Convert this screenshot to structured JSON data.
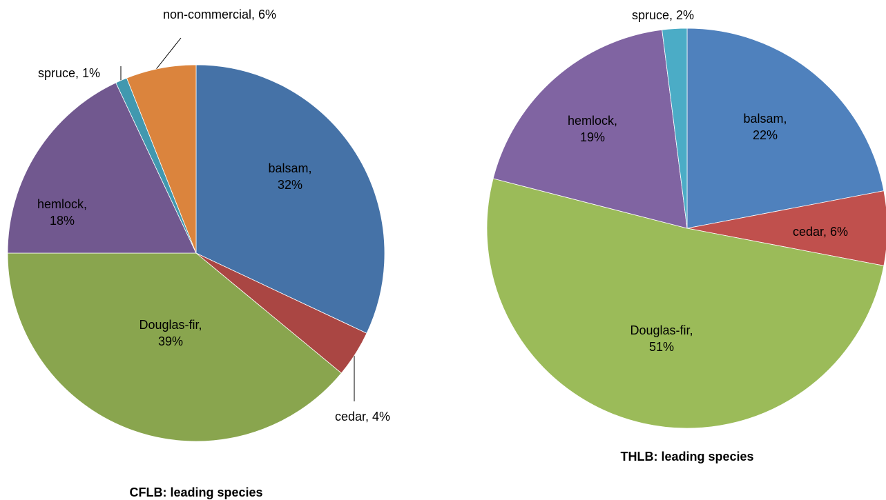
{
  "chart_data": [
    {
      "type": "pie",
      "title": "CFLB: leading species",
      "categories": [
        "balsam",
        "cedar",
        "Douglas-fir",
        "hemlock",
        "spruce",
        "non-commercial"
      ],
      "values": [
        32,
        4,
        39,
        18,
        1,
        6
      ],
      "value_labels": [
        "balsam, 32%",
        "cedar, 4%",
        "Douglas-fir, 39%",
        "hemlock, 18%",
        "spruce, 1%",
        "non-commercial, 6%"
      ],
      "colors": [
        "#4572a7",
        "#aa4643",
        "#89a54e",
        "#71588f",
        "#4198af",
        "#db843d"
      ]
    },
    {
      "type": "pie",
      "title": "THLB: leading species",
      "categories": [
        "balsam",
        "cedar",
        "Douglas-fir",
        "hemlock",
        "spruce"
      ],
      "values": [
        22,
        6,
        51,
        19,
        2
      ],
      "value_labels": [
        "balsam, 22%",
        "cedar, 6%",
        "Douglas-fir, 51%",
        "hemlock, 19%",
        "spruce, 2%"
      ],
      "colors": [
        "#4f81bd",
        "#c0504d",
        "#9bbb59",
        "#8064a2",
        "#4bacc6"
      ]
    }
  ]
}
